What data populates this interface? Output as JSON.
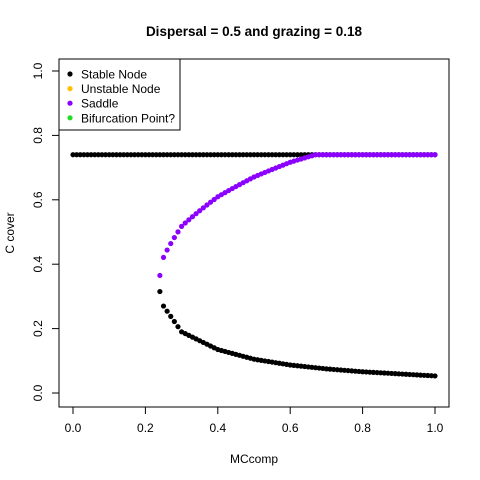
{
  "chart_data": {
    "type": "scatter",
    "title": "Dispersal =  0.5 and grazing = 0.18",
    "xlabel": "MCcomp",
    "ylabel": "C cover",
    "xlim": [
      0,
      1
    ],
    "ylim": [
      0,
      1
    ],
    "x_ticks": [
      "0.0",
      "0.2",
      "0.4",
      "0.6",
      "0.8",
      "1.0"
    ],
    "y_ticks": [
      "0.0",
      "0.2",
      "0.4",
      "0.6",
      "0.8",
      "1.0"
    ],
    "grid": false,
    "legend_position": "top-left",
    "legend": [
      {
        "label": "Stable Node",
        "color": "#000000"
      },
      {
        "label": "Unstable Node",
        "color": "#FFC000"
      },
      {
        "label": "Saddle",
        "color": "#8B00FF"
      },
      {
        "label": "Bifurcation Point?",
        "color": "#22DD22"
      }
    ],
    "series": [
      {
        "kind": "Stable Node",
        "color": "#000000",
        "description_points": "upper stable branch, constant",
        "x_range": [
          0,
          1
        ],
        "step": 0.01,
        "y": 0.74
      },
      {
        "kind": "Saddle",
        "color": "#8B00FF",
        "x_range": [
          0.24,
          1
        ],
        "step": 0.01,
        "y_at_x": [
          [
            0.24,
            0.365
          ],
          [
            0.25,
            0.42
          ],
          [
            0.3,
            0.53
          ],
          [
            0.4,
            0.625
          ],
          [
            0.5,
            0.685
          ],
          [
            0.6,
            0.725
          ],
          [
            0.67,
            0.74
          ],
          [
            1.0,
            0.74
          ]
        ]
      },
      {
        "kind": "Stable Node",
        "color": "#000000",
        "x_range": [
          0.24,
          1
        ],
        "step": 0.01,
        "y_at_x": [
          [
            0.24,
            0.315
          ],
          [
            0.25,
            0.27
          ],
          [
            0.3,
            0.19
          ],
          [
            0.4,
            0.135
          ],
          [
            0.5,
            0.105
          ],
          [
            0.6,
            0.087
          ],
          [
            0.7,
            0.075
          ],
          [
            0.8,
            0.066
          ],
          [
            1.0,
            0.053
          ]
        ]
      }
    ]
  }
}
